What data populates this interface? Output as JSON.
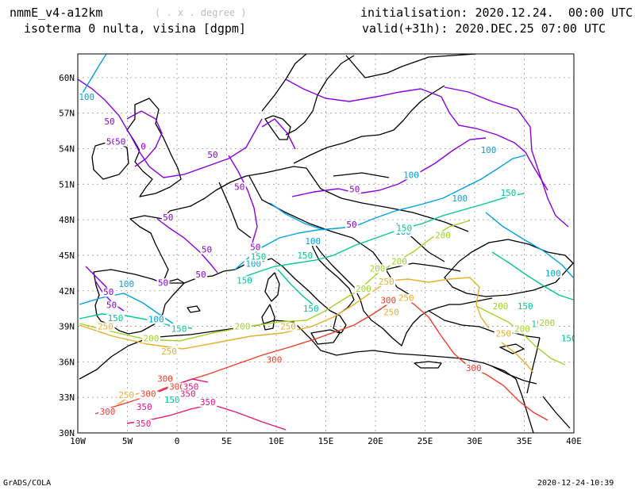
{
  "header": {
    "model": "nmmE_v4-a12km",
    "units_hint": "( . x . degree )",
    "variable": "isoterma 0 nulta, visina [dgpm]",
    "init": "initialisation: 2020.12.24.  00:00 UTC",
    "valid": "valid(+31h): 2020.DEC.25 07:00 UTC"
  },
  "footer": {
    "left": "GrADS/COLA",
    "right": "2020-12-24-10:39"
  },
  "map": {
    "lon_ticks": [
      "10W",
      "5W",
      "0",
      "5E",
      "10E",
      "15E",
      "20E",
      "25E",
      "30E",
      "35E",
      "40E"
    ],
    "lat_ticks": [
      "60N",
      "57N",
      "54N",
      "51N",
      "48N",
      "45N",
      "42N",
      "39N",
      "36N",
      "33N",
      "30N"
    ],
    "lon_range": [
      -10,
      40
    ],
    "lat_range": [
      30,
      62
    ],
    "contour_colors": {
      "0": "#8a00dc",
      "50": "#8a00dc",
      "100": "#00a0e6",
      "150": "#00c896",
      "200": "#a0d228",
      "250": "#e6af2d",
      "300": "#f03c28",
      "350": "#e6147d"
    },
    "contour_labels": [
      {
        "text": "100",
        "lon": -9.1,
        "lat": 58.2,
        "level": "100"
      },
      {
        "text": "50",
        "lon": -6.8,
        "lat": 56.1,
        "level": "50"
      },
      {
        "text": "50",
        "lon": -6.6,
        "lat": 54.4,
        "level": "50"
      },
      {
        "text": "50",
        "lon": -5.7,
        "lat": 54.4,
        "level": "50"
      },
      {
        "text": "0",
        "lon": -3.4,
        "lat": 54.0,
        "level": "0"
      },
      {
        "text": "50",
        "lon": 3.6,
        "lat": 53.3,
        "level": "50"
      },
      {
        "text": "50",
        "lon": -0.9,
        "lat": 48.0,
        "level": "50"
      },
      {
        "text": "50",
        "lon": 6.3,
        "lat": 50.6,
        "level": "50"
      },
      {
        "text": "50",
        "lon": 17.9,
        "lat": 50.4,
        "level": "50"
      },
      {
        "text": "50",
        "lon": 7.9,
        "lat": 45.5,
        "level": "50"
      },
      {
        "text": "50",
        "lon": 3.0,
        "lat": 45.3,
        "level": "50"
      },
      {
        "text": "50",
        "lon": 2.4,
        "lat": 43.2,
        "level": "50"
      },
      {
        "text": "50",
        "lon": -1.4,
        "lat": 42.5,
        "level": "50"
      },
      {
        "text": "50",
        "lon": -6.9,
        "lat": 41.7,
        "level": "50"
      },
      {
        "text": "50",
        "lon": -6.6,
        "lat": 40.6,
        "level": "50"
      },
      {
        "text": "100",
        "lon": -5.1,
        "lat": 42.4,
        "level": "100"
      },
      {
        "text": "100",
        "lon": 7.7,
        "lat": 44.1,
        "level": "100"
      },
      {
        "text": "100",
        "lon": 13.7,
        "lat": 46.0,
        "level": "100"
      },
      {
        "text": "50",
        "lon": 17.6,
        "lat": 47.4,
        "level": "50"
      },
      {
        "text": "100",
        "lon": 23.6,
        "lat": 51.6,
        "level": "100"
      },
      {
        "text": "100",
        "lon": 22.8,
        "lat": 46.8,
        "level": "100"
      },
      {
        "text": "100",
        "lon": 31.4,
        "lat": 53.7,
        "level": "100"
      },
      {
        "text": "100",
        "lon": 28.5,
        "lat": 49.6,
        "level": "100"
      },
      {
        "text": "100",
        "lon": 37.9,
        "lat": 43.3,
        "level": "100"
      },
      {
        "text": "100",
        "lon": -2.1,
        "lat": 39.4,
        "level": "100"
      },
      {
        "text": "150",
        "lon": 33.4,
        "lat": 50.1,
        "level": "150"
      },
      {
        "text": "150",
        "lon": 8.2,
        "lat": 44.7,
        "level": "150"
      },
      {
        "text": "150",
        "lon": 12.9,
        "lat": 44.8,
        "level": "150"
      },
      {
        "text": "150",
        "lon": 6.8,
        "lat": 42.7,
        "level": "150"
      },
      {
        "text": "150",
        "lon": 13.5,
        "lat": 40.3,
        "level": "150"
      },
      {
        "text": "150",
        "lon": 22.9,
        "lat": 47.1,
        "level": "150"
      },
      {
        "text": "150",
        "lon": -6.2,
        "lat": 39.5,
        "level": "150"
      },
      {
        "text": "150",
        "lon": 0.2,
        "lat": 38.6,
        "level": "150"
      },
      {
        "text": "150",
        "lon": -0.5,
        "lat": 32.6,
        "level": "150"
      },
      {
        "text": "150",
        "lon": 36.5,
        "lat": 39.0,
        "level": "150"
      },
      {
        "text": "150",
        "lon": 39.5,
        "lat": 37.8,
        "level": "150"
      },
      {
        "text": "200",
        "lon": 26.8,
        "lat": 46.5,
        "level": "200"
      },
      {
        "text": "200",
        "lon": 22.4,
        "lat": 44.3,
        "level": "200"
      },
      {
        "text": "200",
        "lon": 20.2,
        "lat": 43.7,
        "level": "200"
      },
      {
        "text": "200",
        "lon": 18.8,
        "lat": 42.0,
        "level": "200"
      },
      {
        "text": "200",
        "lon": 6.6,
        "lat": 38.8,
        "level": "200"
      },
      {
        "text": "200",
        "lon": -2.6,
        "lat": 37.8,
        "level": "200"
      },
      {
        "text": "200",
        "lon": 32.6,
        "lat": 40.5,
        "level": "200"
      },
      {
        "text": "200",
        "lon": 34.8,
        "lat": 38.6,
        "level": "200"
      },
      {
        "text": "150",
        "lon": 35.1,
        "lat": 40.5,
        "level": "150"
      },
      {
        "text": "200",
        "lon": 37.3,
        "lat": 39.1,
        "level": "200"
      },
      {
        "text": "250",
        "lon": 21.1,
        "lat": 42.6,
        "level": "250"
      },
      {
        "text": "250",
        "lon": 23.1,
        "lat": 41.2,
        "level": "250"
      },
      {
        "text": "250",
        "lon": 21.6,
        "lat": 40.0,
        "level": "250"
      },
      {
        "text": "250",
        "lon": 11.2,
        "lat": 38.8,
        "level": "250"
      },
      {
        "text": "250",
        "lon": -0.8,
        "lat": 36.7,
        "level": "250"
      },
      {
        "text": "250",
        "lon": -7.2,
        "lat": 38.8,
        "level": "250"
      },
      {
        "text": "250",
        "lon": 32.9,
        "lat": 38.2,
        "level": "250"
      },
      {
        "text": "250",
        "lon": -5.1,
        "lat": 33.0,
        "level": "250"
      },
      {
        "text": "300",
        "lon": 21.3,
        "lat": 41.0,
        "level": "300"
      },
      {
        "text": "300",
        "lon": 9.8,
        "lat": 36.0,
        "level": "300"
      },
      {
        "text": "300",
        "lon": -1.2,
        "lat": 34.4,
        "level": "300"
      },
      {
        "text": "300",
        "lon": -2.9,
        "lat": 33.1,
        "level": "300"
      },
      {
        "text": "300",
        "lon": 29.9,
        "lat": 35.3,
        "level": "300"
      },
      {
        "text": "300",
        "lon": 0.0,
        "lat": 33.7,
        "level": "300"
      },
      {
        "text": "300",
        "lon": -7.0,
        "lat": 31.6,
        "level": "300"
      },
      {
        "text": "350",
        "lon": 1.4,
        "lat": 33.7,
        "level": "350"
      },
      {
        "text": "350",
        "lon": 1.1,
        "lat": 33.1,
        "level": "350"
      },
      {
        "text": "350",
        "lon": -3.3,
        "lat": 32.0,
        "level": "350"
      },
      {
        "text": "350",
        "lon": 3.1,
        "lat": 32.4,
        "level": "350"
      },
      {
        "text": "350",
        "lon": -3.4,
        "lat": 30.6,
        "level": "350"
      }
    ]
  }
}
